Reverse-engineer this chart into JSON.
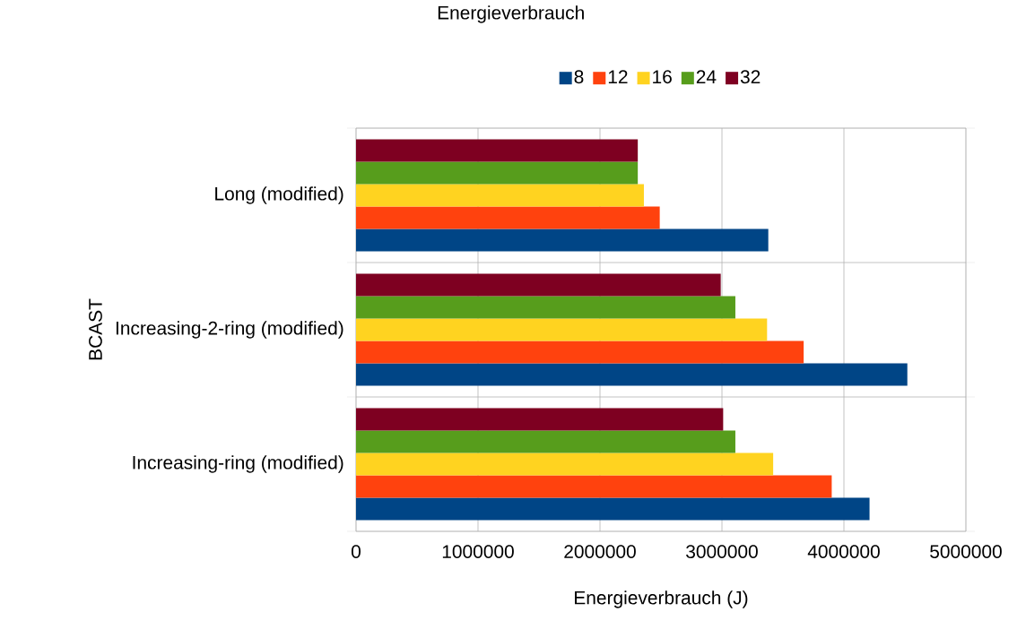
{
  "chart_data": {
    "type": "bar",
    "orientation": "horizontal",
    "title": "Energieverbrauch",
    "xlabel": "Energieverbrauch (J)",
    "ylabel": "BCAST",
    "categories": [
      "Long (modified)",
      "Increasing-2-ring (modified)",
      "Increasing-ring (modified)"
    ],
    "series": [
      {
        "name": "8",
        "color": "#004586",
        "values": [
          3380000,
          4520000,
          4210000
        ]
      },
      {
        "name": "12",
        "color": "#ff420e",
        "values": [
          2490000,
          3670000,
          3900000
        ]
      },
      {
        "name": "16",
        "color": "#ffd320",
        "values": [
          2360000,
          3370000,
          3420000
        ]
      },
      {
        "name": "24",
        "color": "#579d1c",
        "values": [
          2310000,
          3110000,
          3110000
        ]
      },
      {
        "name": "32",
        "color": "#7e0021",
        "values": [
          2310000,
          2990000,
          3010000
        ]
      }
    ],
    "xlim": [
      0,
      5000000
    ],
    "xticks": [
      0,
      1000000,
      2000000,
      3000000,
      4000000,
      5000000
    ],
    "grid": true,
    "legend": "top"
  }
}
